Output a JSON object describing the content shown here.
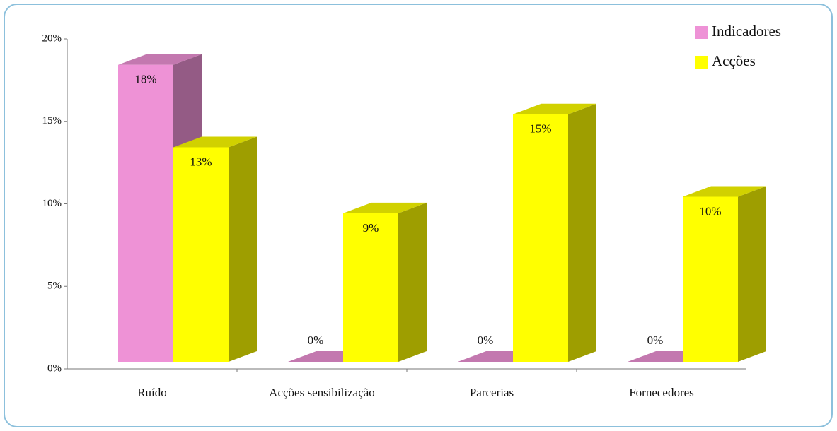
{
  "chart_data": {
    "type": "bar3d",
    "categories": [
      "Ruído",
      "Acções sensibilização",
      "Parcerias",
      "Fornecedores"
    ],
    "series": [
      {
        "name": "Indicadores",
        "color": "#ee92d6",
        "values": [
          18,
          0,
          0,
          0
        ],
        "value_labels": [
          "18%",
          "0%",
          "0%",
          "0%"
        ]
      },
      {
        "name": "Acções",
        "color": "#ffff00",
        "values": [
          13,
          9,
          15,
          10
        ],
        "value_labels": [
          "13%",
          "9%",
          "15%",
          "10%"
        ]
      }
    ],
    "ylim": [
      0,
      20
    ],
    "yticks": [
      {
        "value": 0,
        "label": "0%"
      },
      {
        "value": 5,
        "label": "5%"
      },
      {
        "value": 10,
        "label": "10%"
      },
      {
        "value": 15,
        "label": "15%"
      },
      {
        "value": 20,
        "label": "20%"
      }
    ],
    "legend": "top-right"
  }
}
